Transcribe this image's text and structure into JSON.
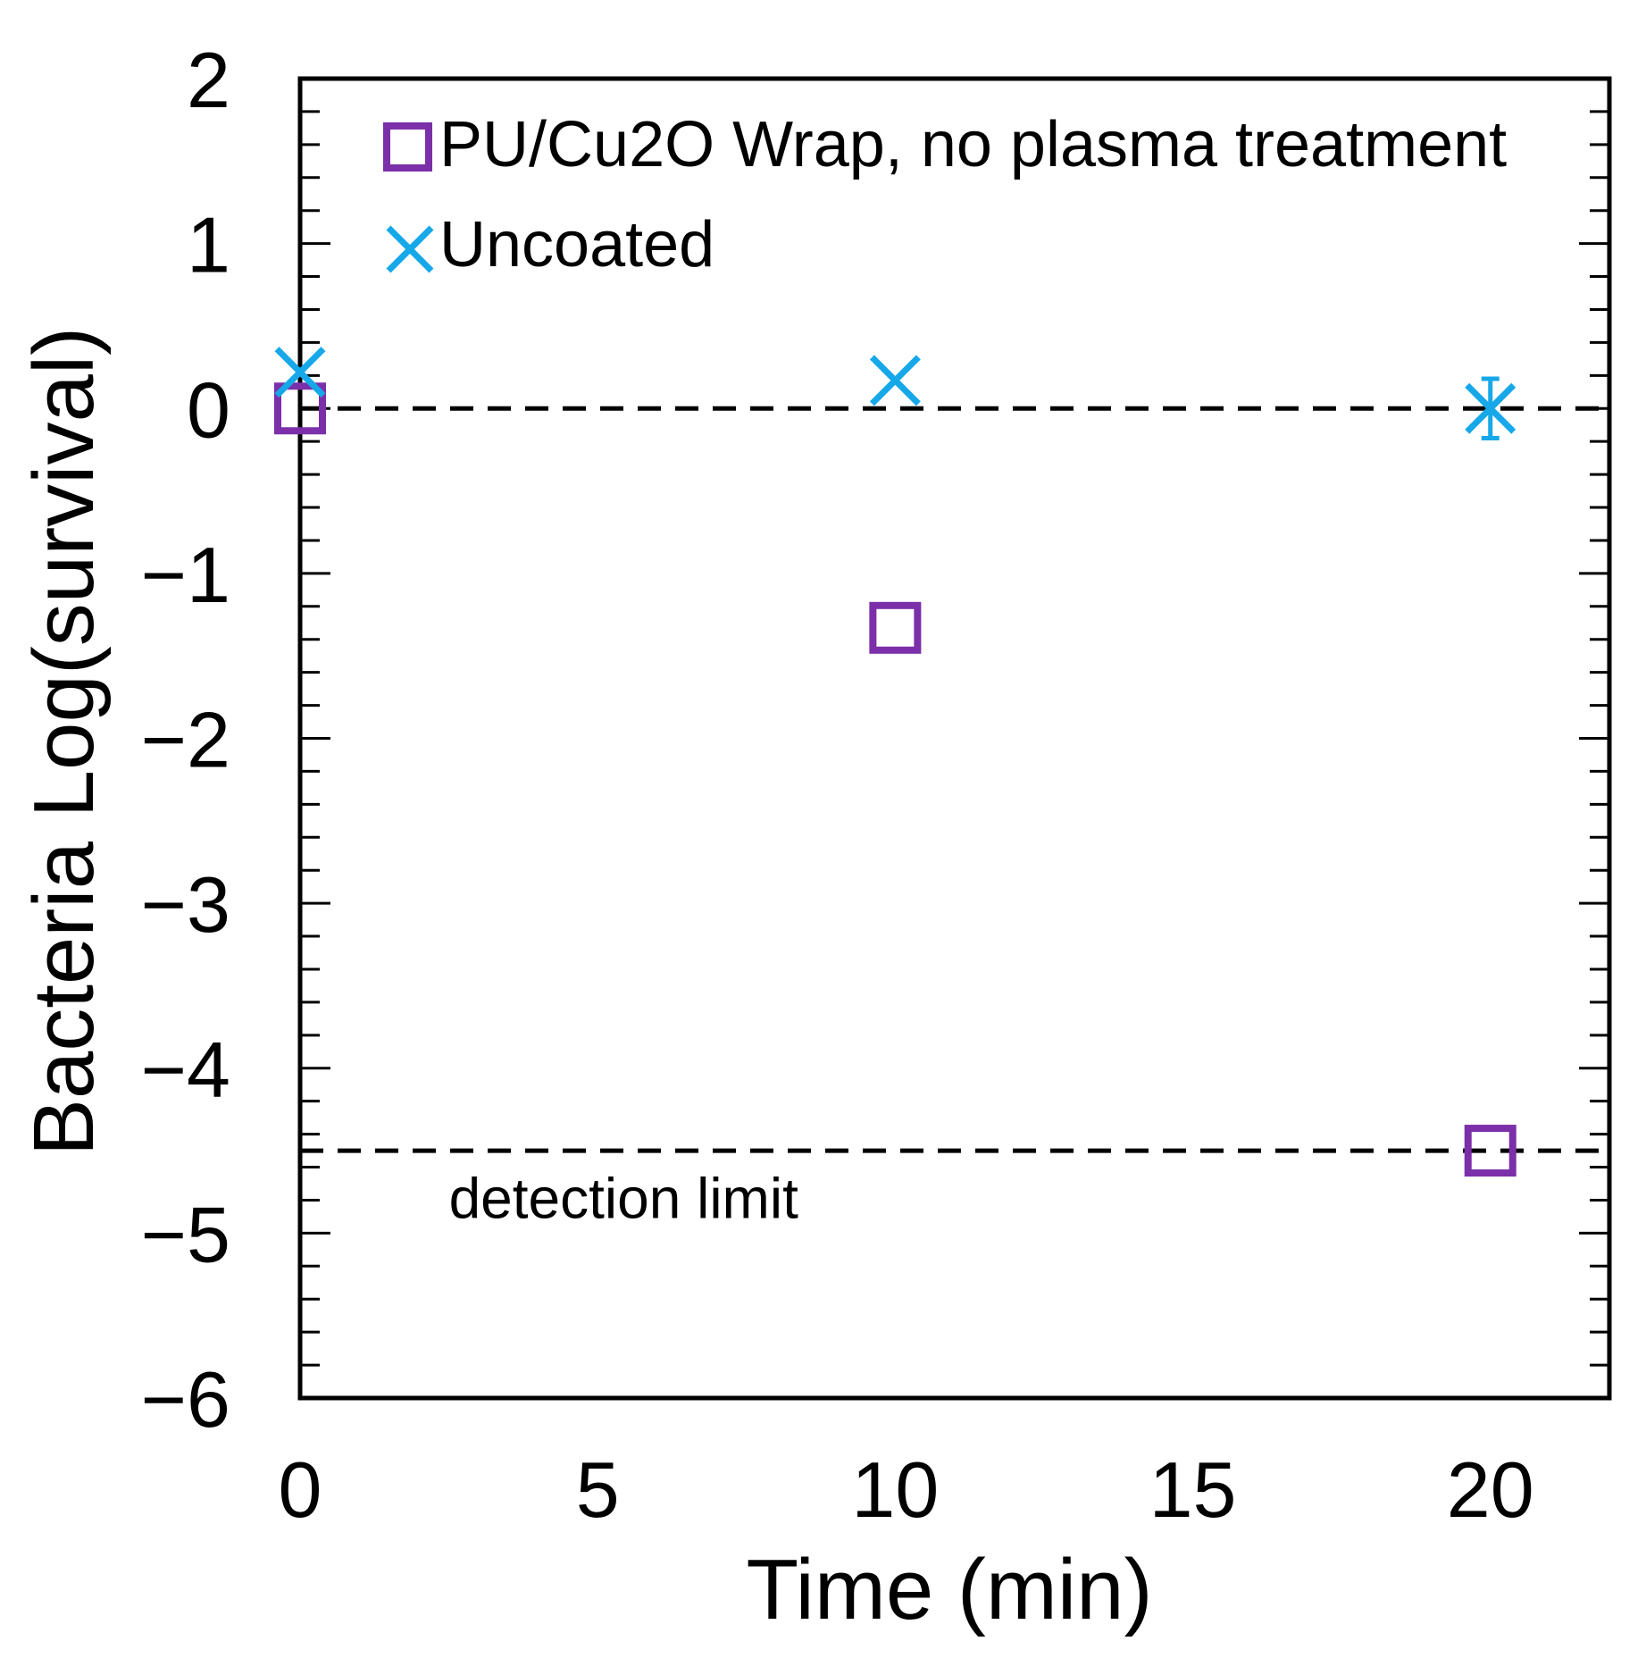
{
  "chart_data": {
    "type": "scatter",
    "title": "",
    "xlabel": "Time (min)",
    "ylabel": "Bacteria Log(survival)",
    "xlim": [
      0,
      22
    ],
    "ylim": [
      -6,
      2
    ],
    "xticks": [
      0,
      5,
      10,
      15,
      20
    ],
    "yticks": [
      2,
      1,
      0,
      -1,
      -2,
      -3,
      -4,
      -5,
      -6
    ],
    "xtick_labels": [
      "0",
      "5",
      "10",
      "15",
      "20"
    ],
    "ytick_labels": [
      "2",
      "1",
      "0",
      "−1",
      "−2",
      "−3",
      "−4",
      "−5",
      "−6"
    ],
    "grid": false,
    "legend_position": "top-left",
    "series": [
      {
        "name": "PU/Cu2O Wrap, no plasma treatment",
        "marker": "square",
        "color": "#7B2FA8",
        "x": [
          0,
          10,
          20
        ],
        "y": [
          0,
          -1.33,
          -4.5
        ],
        "error": [
          0,
          0,
          0
        ]
      },
      {
        "name": "Uncoated",
        "marker": "x",
        "color": "#16A8E8",
        "x": [
          0,
          10,
          20
        ],
        "y": [
          0.22,
          0.17,
          0.0
        ],
        "error": [
          0,
          0,
          0.18
        ]
      }
    ],
    "reference_lines": [
      {
        "y": 0,
        "style": "dashed",
        "label": ""
      },
      {
        "y": -4.5,
        "style": "dashed",
        "label": "detection limit"
      }
    ],
    "annotations": [
      {
        "text": "detection limit",
        "x": 2.5,
        "y": -4.8
      }
    ]
  }
}
